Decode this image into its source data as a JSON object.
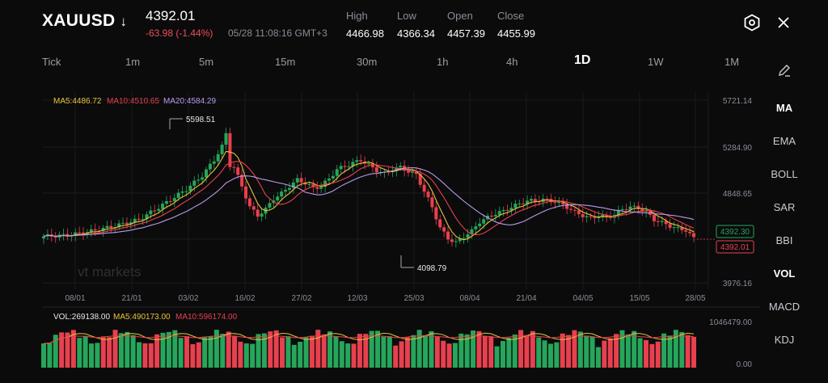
{
  "header": {
    "symbol": "XAUUSD",
    "direction_icon": "arrow-down-icon",
    "price": "4392.01",
    "change": "-63.98 (-1.44%)",
    "datetime": "05/28 11:08:16 GMT+3",
    "stats": [
      {
        "label": "High",
        "value": "4466.98"
      },
      {
        "label": "Low",
        "value": "4366.34"
      },
      {
        "label": "Open",
        "value": "4457.39"
      },
      {
        "label": "Close",
        "value": "4455.99"
      }
    ],
    "icons": [
      "settings-hex-icon",
      "close-icon"
    ]
  },
  "timeframes": [
    "Tick",
    "1m",
    "5m",
    "15m",
    "30m",
    "1h",
    "4h",
    "1D",
    "1W",
    "1M"
  ],
  "active_timeframe": "1D",
  "sidebar": {
    "draw_icon": "pencil-icon",
    "items": [
      "MA",
      "EMA",
      "BOLL",
      "SAR",
      "BBI",
      "VOL",
      "MACD",
      "KDJ"
    ],
    "active": [
      "MA",
      "VOL"
    ]
  },
  "colors": {
    "up": "#26a65b",
    "down": "#e8404e",
    "ma5": "#e8c33a",
    "ma10": "#e8404e",
    "ma20": "#b89ae8",
    "muted": "#8a8d96",
    "background": "#0b0b0c"
  },
  "chart_data": {
    "type": "candlestick",
    "indicators": {
      "ma5_label": "MA5:4486.72",
      "ma10_label": "MA10:4510.65",
      "ma20_label": "MA20:4584.29"
    },
    "y_ticks": [
      "5721.14",
      "5284.90",
      "4848.65",
      "3976.16"
    ],
    "ylim": [
      3976.16,
      5721.14
    ],
    "x_ticks": [
      "08/01",
      "21/01",
      "03/02",
      "16/02",
      "27/02",
      "12/03",
      "25/03",
      "08/04",
      "21/04",
      "04/05",
      "15/05",
      "28/05"
    ],
    "annotations": {
      "high_label": "5598.51",
      "low_label": "4098.79"
    },
    "current_price_label": "4392.30",
    "close_price_label": "4392.01",
    "watermark": "vt markets",
    "volume": {
      "vol_label": "VOL:269138.00",
      "ma5_label": "MA5:490173.00",
      "ma10_label": "MA10:596174.00",
      "y_ticks": [
        "1046479.00",
        "0.00"
      ],
      "ymax": 1046479
    }
  }
}
